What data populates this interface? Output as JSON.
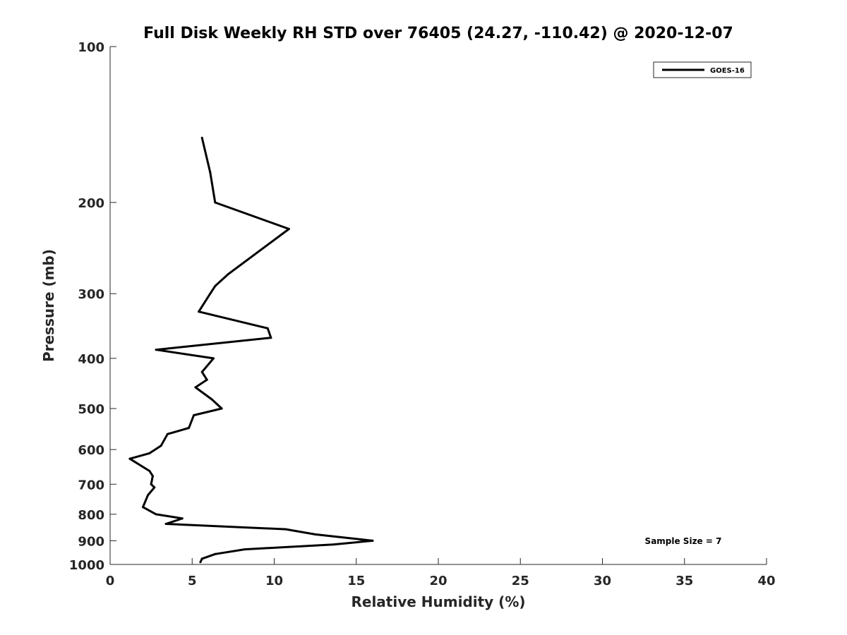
{
  "chart_data": {
    "type": "line",
    "title": "Full Disk Weekly RH STD over 76405 (24.27, -110.42) @ 2020-12-07",
    "xlabel": "Relative Humidity (%)",
    "ylabel": "Pressure (mb)",
    "xlim": [
      0,
      40
    ],
    "ylim": [
      100,
      1000
    ],
    "y_scale": "log",
    "y_reversed": true,
    "grid": false,
    "legend_position": "top-right",
    "x_ticks": [
      0,
      5,
      10,
      15,
      20,
      25,
      30,
      35,
      40
    ],
    "x_tick_labels": [
      "0",
      "5",
      "10",
      "15",
      "20",
      "25",
      "30",
      "35",
      "40"
    ],
    "y_ticks": [
      100,
      200,
      300,
      400,
      500,
      600,
      700,
      800,
      900,
      1000
    ],
    "y_tick_labels": [
      "100",
      "200",
      "300",
      "400",
      "500",
      "600",
      "700",
      "800",
      "900",
      "1000"
    ],
    "series": [
      {
        "name": "GOES-16",
        "color": "#000000",
        "points": [
          {
            "x": 5.6,
            "y": 150
          },
          {
            "x": 6.1,
            "y": 175
          },
          {
            "x": 6.4,
            "y": 200
          },
          {
            "x": 10.9,
            "y": 225
          },
          {
            "x": 7.2,
            "y": 275
          },
          {
            "x": 6.4,
            "y": 290
          },
          {
            "x": 6.1,
            "y": 300
          },
          {
            "x": 5.4,
            "y": 325
          },
          {
            "x": 9.6,
            "y": 350
          },
          {
            "x": 9.8,
            "y": 365
          },
          {
            "x": 2.8,
            "y": 385
          },
          {
            "x": 6.3,
            "y": 400
          },
          {
            "x": 5.6,
            "y": 425
          },
          {
            "x": 5.9,
            "y": 440
          },
          {
            "x": 5.2,
            "y": 455
          },
          {
            "x": 6.2,
            "y": 480
          },
          {
            "x": 6.8,
            "y": 500
          },
          {
            "x": 5.1,
            "y": 515
          },
          {
            "x": 4.8,
            "y": 545
          },
          {
            "x": 3.5,
            "y": 560
          },
          {
            "x": 3.1,
            "y": 590
          },
          {
            "x": 2.4,
            "y": 610
          },
          {
            "x": 1.2,
            "y": 625
          },
          {
            "x": 2.4,
            "y": 660
          },
          {
            "x": 2.6,
            "y": 675
          },
          {
            "x": 2.5,
            "y": 700
          },
          {
            "x": 2.7,
            "y": 710
          },
          {
            "x": 2.3,
            "y": 735
          },
          {
            "x": 2.0,
            "y": 775
          },
          {
            "x": 2.8,
            "y": 800
          },
          {
            "x": 4.4,
            "y": 815
          },
          {
            "x": 3.4,
            "y": 835
          },
          {
            "x": 10.7,
            "y": 855
          },
          {
            "x": 12.5,
            "y": 875
          },
          {
            "x": 16.0,
            "y": 900
          },
          {
            "x": 13.6,
            "y": 915
          },
          {
            "x": 8.2,
            "y": 935
          },
          {
            "x": 6.4,
            "y": 955
          },
          {
            "x": 5.6,
            "y": 975
          },
          {
            "x": 5.5,
            "y": 990
          }
        ]
      }
    ],
    "annotations": [
      {
        "text": "Sample Size = 7"
      }
    ]
  }
}
